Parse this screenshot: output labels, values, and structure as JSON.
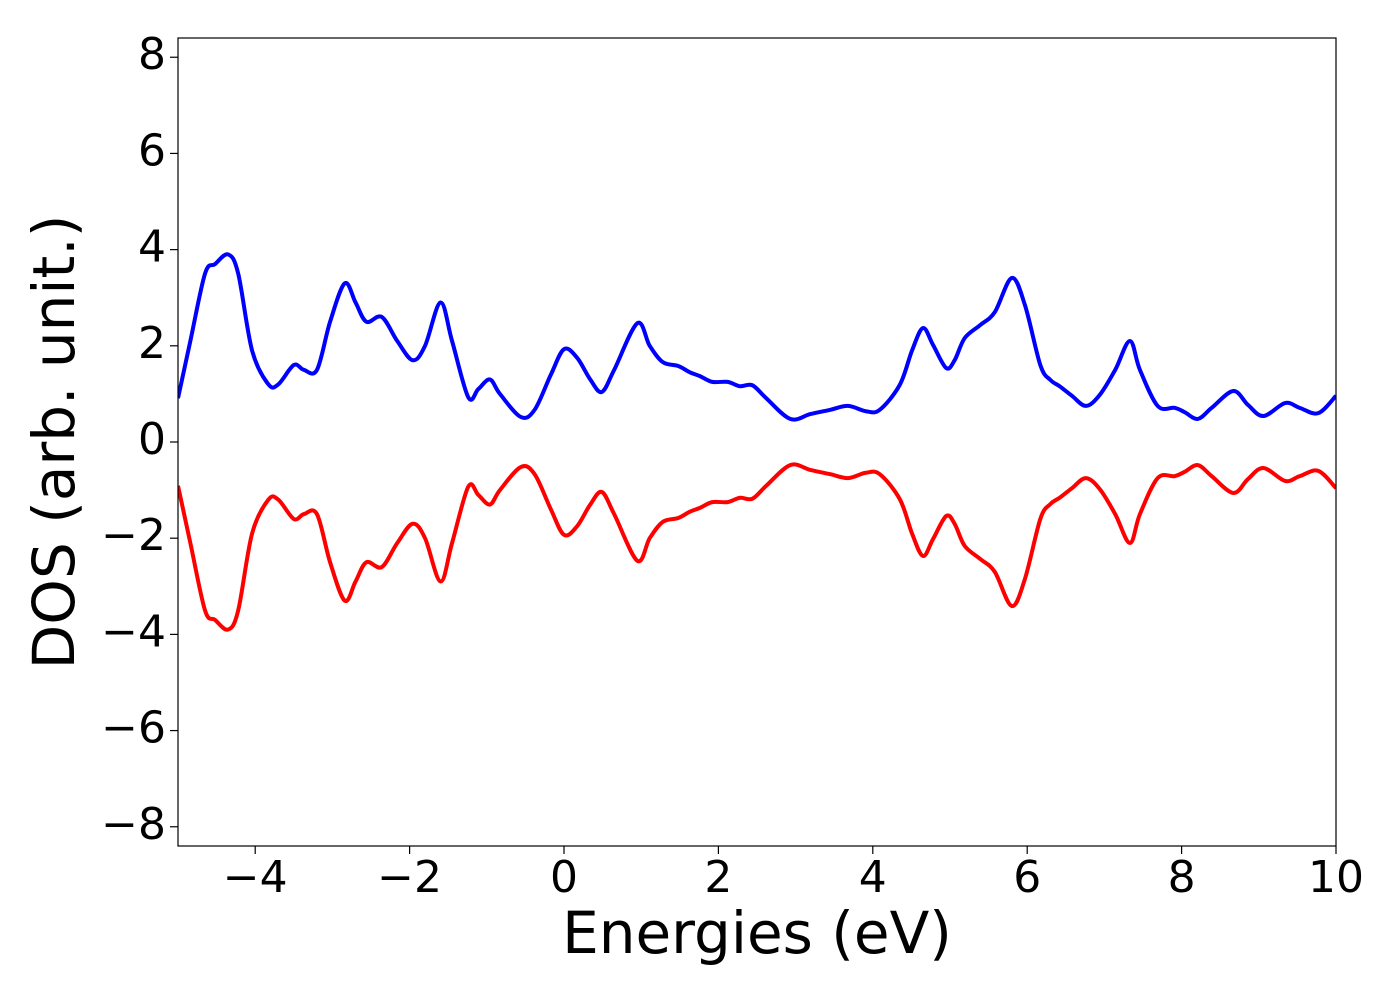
{
  "chart_data": {
    "type": "line",
    "x_label": "Energies (eV)",
    "y_label": "DOS (arb. unit.)",
    "xlim": [
      -5,
      10
    ],
    "ylim": [
      -8.4,
      8.4
    ],
    "xticks": [
      {
        "value": -4,
        "label": "−4"
      },
      {
        "value": -2,
        "label": "−2"
      },
      0,
      2,
      4,
      6,
      8,
      10
    ],
    "yticks": [
      {
        "value": -8,
        "label": "−8"
      },
      {
        "value": -6,
        "label": "−6"
      },
      {
        "value": -4,
        "label": "−4"
      },
      {
        "value": -2,
        "label": "−2"
      },
      0,
      2,
      4,
      6,
      8
    ],
    "grid": false,
    "x": [
      -5,
      -4.84,
      -4.65,
      -4.52,
      -4.35,
      -4.22,
      -4.04,
      -3.83,
      -3.7,
      -3.5,
      -3.37,
      -3.2,
      -3.03,
      -2.84,
      -2.7,
      -2.56,
      -2.36,
      -2.16,
      -1.96,
      -1.8,
      -1.6,
      -1.45,
      -1.24,
      -1.11,
      -0.96,
      -0.83,
      -0.56,
      -0.38,
      -0.17,
      0,
      0.17,
      0.34,
      0.49,
      0.65,
      0.95,
      1.11,
      1.28,
      1.48,
      1.63,
      1.76,
      1.92,
      2.12,
      2.28,
      2.44,
      2.62,
      2.93,
      3.19,
      3.45,
      3.68,
      3.91,
      4.09,
      4.35,
      4.51,
      4.65,
      4.78,
      4.95,
      5.06,
      5.19,
      5.39,
      5.58,
      5.8,
      5.97,
      6.17,
      6.3,
      6.42,
      6.58,
      6.76,
      6.94,
      7.14,
      7.33,
      7.46,
      7.69,
      7.91,
      8.04,
      8.21,
      8.39,
      8.67,
      8.86,
      9.06,
      9.34,
      9.53,
      9.77,
      10
    ],
    "series": [
      {
        "color": "#0000ff",
        "values": [
          0.91,
          2.1,
          3.5,
          3.7,
          3.9,
          3.5,
          1.9,
          1.2,
          1.2,
          1.6,
          1.5,
          1.5,
          2.5,
          3.3,
          2.9,
          2.5,
          2.6,
          2.1,
          1.7,
          2.0,
          2.9,
          2.1,
          0.93,
          1.1,
          1.3,
          1.0,
          0.52,
          0.67,
          1.4,
          1.93,
          1.75,
          1.3,
          1.04,
          1.5,
          2.47,
          2.0,
          1.66,
          1.58,
          1.45,
          1.37,
          1.25,
          1.25,
          1.16,
          1.18,
          0.91,
          0.48,
          0.58,
          0.67,
          0.75,
          0.64,
          0.67,
          1.19,
          1.91,
          2.37,
          2.02,
          1.54,
          1.7,
          2.16,
          2.43,
          2.7,
          3.41,
          2.85,
          1.6,
          1.29,
          1.16,
          0.96,
          0.75,
          0.98,
          1.5,
          2.1,
          1.5,
          0.75,
          0.71,
          0.62,
          0.48,
          0.71,
          1.06,
          0.77,
          0.54,
          0.81,
          0.71,
          0.6,
          0.96
        ]
      },
      {
        "color": "#ff0000",
        "values": [
          -0.91,
          -2.1,
          -3.5,
          -3.7,
          -3.9,
          -3.5,
          -1.9,
          -1.2,
          -1.2,
          -1.6,
          -1.5,
          -1.5,
          -2.5,
          -3.3,
          -2.9,
          -2.5,
          -2.6,
          -2.1,
          -1.7,
          -2.0,
          -2.9,
          -2.1,
          -0.93,
          -1.1,
          -1.3,
          -1.0,
          -0.52,
          -0.67,
          -1.4,
          -1.93,
          -1.75,
          -1.3,
          -1.04,
          -1.5,
          -2.47,
          -2.0,
          -1.66,
          -1.58,
          -1.45,
          -1.37,
          -1.25,
          -1.25,
          -1.16,
          -1.18,
          -0.91,
          -0.48,
          -0.58,
          -0.67,
          -0.75,
          -0.64,
          -0.67,
          -1.19,
          -1.91,
          -2.37,
          -2.02,
          -1.54,
          -1.7,
          -2.16,
          -2.43,
          -2.7,
          -3.41,
          -2.85,
          -1.6,
          -1.29,
          -1.16,
          -0.96,
          -0.75,
          -0.98,
          -1.5,
          -2.1,
          -1.5,
          -0.75,
          -0.71,
          -0.62,
          -0.48,
          -0.71,
          -1.06,
          -0.77,
          -0.54,
          -0.81,
          -0.71,
          -0.6,
          -0.96
        ]
      }
    ]
  }
}
